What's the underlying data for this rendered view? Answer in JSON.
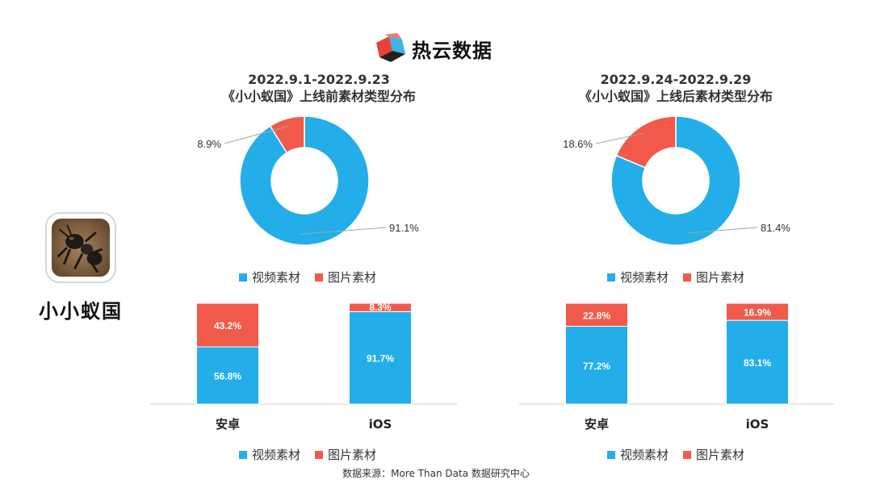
{
  "brand": {
    "name": "热云数据"
  },
  "app": {
    "name": "小小蚁国"
  },
  "colors": {
    "video": "#23AEEA",
    "image": "#F15A4A"
  },
  "legend": {
    "video": "视频素材",
    "image": "图片素材"
  },
  "footer": "数据来源：More Than Data 数据研究中心",
  "chart_data": [
    {
      "type": "pie",
      "variant": "donut",
      "title_line1": "2022.9.1-2022.9.23",
      "title_line2": "《小小蚁国》上线前素材类型分布",
      "slices": [
        {
          "label": "视频素材",
          "value": 91.1,
          "display": "91.1%"
        },
        {
          "label": "图片素材",
          "value": 8.9,
          "display": "8.9%"
        }
      ]
    },
    {
      "type": "pie",
      "variant": "donut",
      "title_line1": "2022.9.24-2022.9.29",
      "title_line2": "《小小蚁国》上线后素材类型分布",
      "slices": [
        {
          "label": "视频素材",
          "value": 81.4,
          "display": "81.4%"
        },
        {
          "label": "图片素材",
          "value": 18.6,
          "display": "18.6%"
        }
      ]
    },
    {
      "type": "bar",
      "stacked": true,
      "normalized": true,
      "categories": [
        "安卓",
        "iOS"
      ],
      "series": [
        {
          "name": "视频素材",
          "values": [
            56.8,
            91.7
          ],
          "labels": [
            "56.8%",
            "91.7%"
          ]
        },
        {
          "name": "图片素材",
          "values": [
            43.2,
            8.3
          ],
          "labels": [
            "43.2%",
            "8.3%"
          ]
        }
      ]
    },
    {
      "type": "bar",
      "stacked": true,
      "normalized": true,
      "categories": [
        "安卓",
        "iOS"
      ],
      "series": [
        {
          "name": "视频素材",
          "values": [
            77.2,
            83.1
          ],
          "labels": [
            "77.2%",
            "83.1%"
          ]
        },
        {
          "name": "图片素材",
          "values": [
            22.8,
            16.9
          ],
          "labels": [
            "22.8%",
            "16.9%"
          ]
        }
      ]
    }
  ]
}
